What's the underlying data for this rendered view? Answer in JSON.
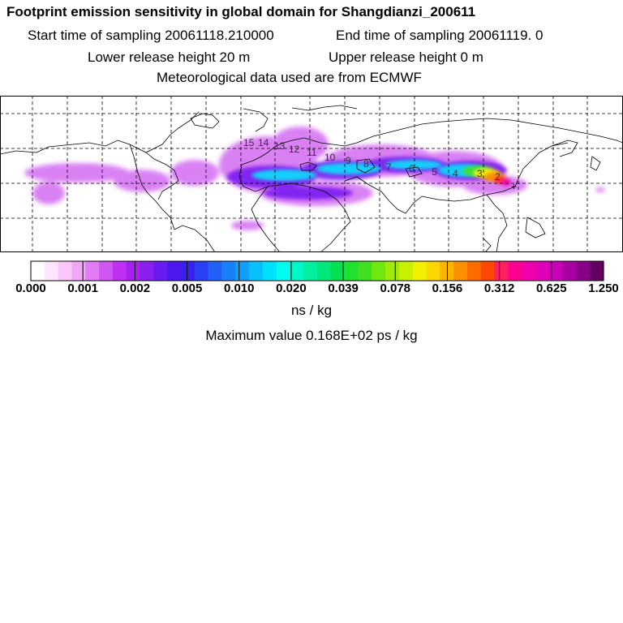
{
  "header": {
    "title": "Footprint emission sensitivity in global domain for Shangdianzi_200611",
    "start_label": "Start time of sampling 20061118.210000",
    "end_label": "End time of sampling 20061119.     0",
    "lower_height": "Lower release height   20 m",
    "upper_height": "Upper release height    0 m",
    "met_data": "Meteorological data used are from ECMWF"
  },
  "map": {
    "trajectory_labels": [
      "15",
      "14",
      "13",
      "12",
      "11",
      "10",
      "9",
      "8",
      "7",
      "6",
      "5",
      "4",
      "3",
      "2"
    ],
    "receptor_marker": "+"
  },
  "colorbar": {
    "tick_labels": [
      "0.000",
      "0.001",
      "0.002",
      "0.005",
      "0.010",
      "0.020",
      "0.039",
      "0.078",
      "0.156",
      "0.312",
      "0.625",
      "1.250"
    ],
    "colors": [
      "#ffffff",
      "#fde6fd",
      "#f9c8f9",
      "#f0a8f6",
      "#e27cf4",
      "#d056f2",
      "#c030f4",
      "#a820f0",
      "#8a20f0",
      "#6a1cf0",
      "#4c18ee",
      "#3a20f0",
      "#2a40f4",
      "#2060f8",
      "#1a80fa",
      "#10a0fc",
      "#08c0fc",
      "#00e0fc",
      "#00fcf0",
      "#00f8c8",
      "#00f0a0",
      "#00e878",
      "#00e050",
      "#20e030",
      "#40e020",
      "#70e810",
      "#a0ec08",
      "#c8f000",
      "#f0f000",
      "#fcd800",
      "#fcb400",
      "#fc9000",
      "#fc6c00",
      "#fc4800",
      "#fc2060",
      "#fc0090",
      "#f000a8",
      "#e000b8",
      "#c800b8",
      "#a800a0",
      "#880088",
      "#600060"
    ],
    "unit": "ns / kg",
    "max_text": "Maximum value  0.168E+02 ps / kg"
  },
  "chart_data": {
    "type": "heatmap",
    "title": "Footprint emission sensitivity in global domain for Shangdianzi_200611",
    "colorbar_levels": [
      0.0,
      0.001,
      0.002,
      0.005,
      0.01,
      0.02,
      0.039,
      0.078,
      0.156,
      0.312,
      0.625,
      1.25
    ],
    "colorbar_unit": "ns / kg",
    "maximum_value": "0.168E+02 ps / kg",
    "trajectory_cluster_labels": [
      "15",
      "14",
      "13",
      "12",
      "11",
      "10",
      "9",
      "8",
      "7",
      "6",
      "5",
      "4",
      "3",
      "2"
    ],
    "grid": true
  }
}
